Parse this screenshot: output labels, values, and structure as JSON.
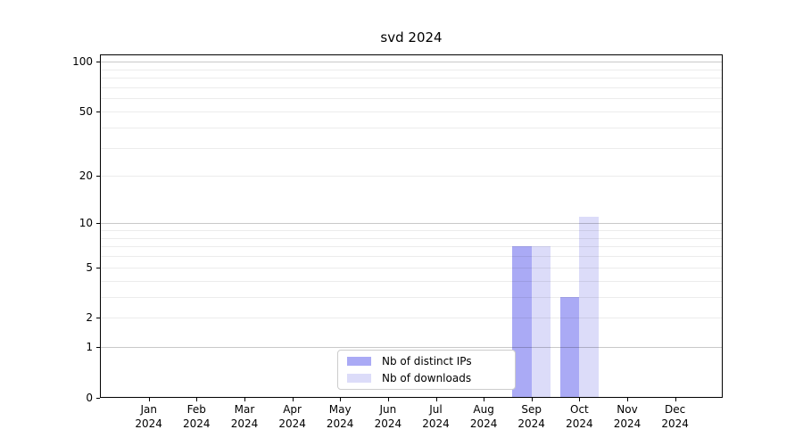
{
  "title": "svd 2024",
  "chart_data": {
    "type": "bar",
    "title": "svd 2024",
    "categories": [
      "Jan 2024",
      "Feb 2024",
      "Mar 2024",
      "Apr 2024",
      "May 2024",
      "Jun 2024",
      "Jul 2024",
      "Aug 2024",
      "Sep 2024",
      "Oct 2024",
      "Nov 2024",
      "Dec 2024"
    ],
    "series": [
      {
        "name": "Nb of distinct IPs",
        "color": "#aaaaf5",
        "values": [
          0,
          0,
          0,
          0,
          0,
          0,
          0,
          0,
          7,
          3,
          0,
          0
        ]
      },
      {
        "name": "Nb of downloads",
        "color": "#dcdcf9",
        "values": [
          0,
          0,
          0,
          0,
          0,
          0,
          0,
          0,
          7,
          11,
          0,
          0
        ]
      }
    ],
    "xlabel": "",
    "ylabel": "",
    "y_axis": {
      "scale": "log(value+1)",
      "ylim": [
        0,
        110
      ],
      "tick_labels": [
        "100",
        "50",
        "20",
        "10",
        "5",
        "2",
        "1",
        "0"
      ],
      "tick_values": [
        100,
        50,
        20,
        10,
        5,
        2,
        1,
        0
      ],
      "major_gridlines": [
        1,
        10,
        100
      ],
      "minor_gridlines": [
        2,
        3,
        4,
        5,
        6,
        7,
        8,
        9,
        20,
        30,
        40,
        50,
        60,
        70,
        80,
        90
      ]
    },
    "grid": true,
    "legend_position": "bottom-center",
    "bar_mode": "grouped"
  },
  "colors": {
    "background": "#ffffff",
    "spine": "#000000",
    "major_grid": "#c9c9c9",
    "minor_grid": "#ececec",
    "legend_border": "#cccccc",
    "ips_bar": "#aaaaf5",
    "downloads_bar": "#dcdcf9",
    "text": "#000000"
  }
}
